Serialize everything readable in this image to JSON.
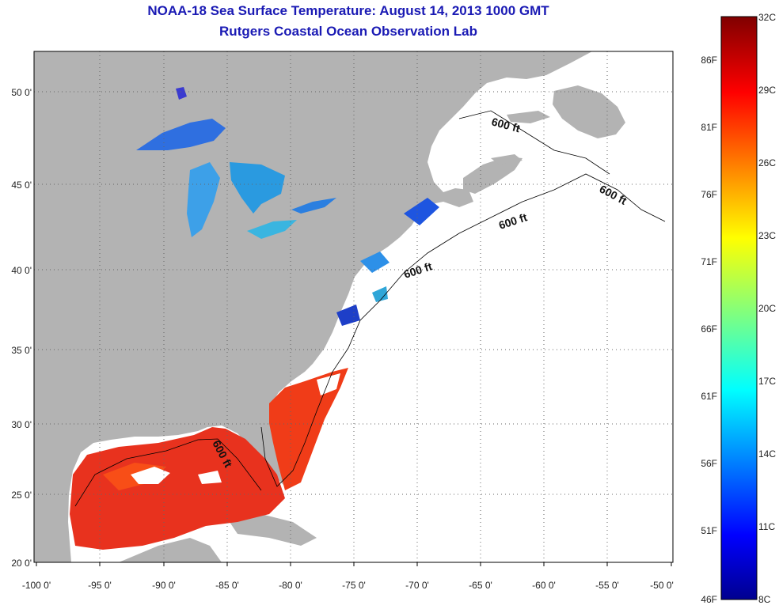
{
  "header": {
    "title": "NOAA-18 Sea Surface Temperature:  August 14, 2013 1000 GMT",
    "subtitle": "Rutgers Coastal Ocean Observation Lab"
  },
  "map": {
    "lon_ticks": [
      "-100 0'",
      "-95 0'",
      "-90 0'",
      "-85 0'",
      "-80 0'",
      "-75 0'",
      "-70 0'",
      "-65 0'",
      "-60 0'",
      "-55 0'",
      "-50 0'"
    ],
    "lat_ticks": [
      "20 0'",
      "25 0'",
      "30 0'",
      "35 0'",
      "40 0'",
      "45 0'",
      "50 0'"
    ],
    "contour_labels": [
      "600 ft",
      "600 ft",
      "600 ft",
      "600 ft",
      "600 ft"
    ],
    "land_color": "#b3b3b3",
    "ocean_color": "#ffffff"
  },
  "colorbar": {
    "celsius_labels": [
      "32C",
      "29C",
      "26C",
      "23C",
      "20C",
      "17C",
      "14C",
      "11C",
      "8C"
    ],
    "fahrenheit_labels": [
      "86F",
      "81F",
      "76F",
      "71F",
      "66F",
      "61F",
      "56F",
      "51F",
      "46F"
    ]
  }
}
